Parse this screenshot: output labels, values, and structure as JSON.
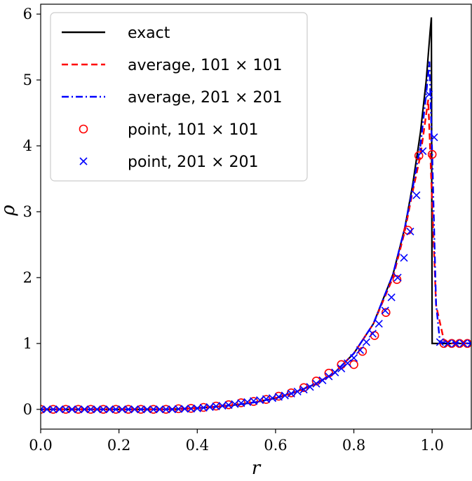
{
  "chart_data": {
    "type": "line",
    "xlabel": "r",
    "ylabel": "ρ",
    "xlim": [
      0.0,
      1.1
    ],
    "ylim": [
      -0.3,
      6.15
    ],
    "xticks": [
      "0.0",
      "0.2",
      "0.4",
      "0.6",
      "0.8",
      "1.0"
    ],
    "yticks": [
      "0",
      "1",
      "2",
      "3",
      "4",
      "5",
      "6"
    ],
    "grid": false,
    "legend_position": "top-left",
    "series": [
      {
        "name": "exact",
        "kind": "line",
        "color": "#000000",
        "x": [
          0.0,
          0.1,
          0.2,
          0.3,
          0.35,
          0.4,
          0.45,
          0.5,
          0.55,
          0.6,
          0.65,
          0.7,
          0.75,
          0.8,
          0.85,
          0.9,
          0.93,
          0.95,
          0.97,
          0.985,
          0.995,
          0.998,
          1.0,
          1.1
        ],
        "y": [
          0.0,
          0.0,
          0.0,
          0.0,
          0.005,
          0.02,
          0.04,
          0.07,
          0.11,
          0.17,
          0.26,
          0.38,
          0.55,
          0.85,
          1.3,
          2.05,
          2.75,
          3.4,
          4.2,
          5.0,
          5.75,
          5.95,
          1.0,
          1.0
        ]
      },
      {
        "name": "average, 101 × 101",
        "kind": "dashed",
        "color": "#ff0000",
        "x": [
          0.0,
          0.1,
          0.2,
          0.3,
          0.35,
          0.4,
          0.45,
          0.5,
          0.55,
          0.6,
          0.65,
          0.7,
          0.75,
          0.8,
          0.85,
          0.9,
          0.93,
          0.95,
          0.97,
          0.99,
          1.01,
          1.03,
          1.05,
          1.1
        ],
        "y": [
          0.0,
          0.0,
          0.0,
          0.0,
          0.005,
          0.02,
          0.04,
          0.07,
          0.11,
          0.17,
          0.26,
          0.38,
          0.55,
          0.85,
          1.3,
          2.0,
          2.7,
          3.3,
          3.85,
          4.7,
          1.58,
          1.05,
          1.0,
          1.0
        ]
      },
      {
        "name": "average, 201 × 201",
        "kind": "dashdot",
        "color": "#0000ff",
        "x": [
          0.0,
          0.1,
          0.2,
          0.3,
          0.35,
          0.4,
          0.45,
          0.5,
          0.55,
          0.6,
          0.65,
          0.7,
          0.75,
          0.8,
          0.85,
          0.9,
          0.93,
          0.95,
          0.97,
          0.985,
          0.993,
          1.0,
          1.01,
          1.02,
          1.1
        ],
        "y": [
          0.0,
          0.0,
          0.0,
          0.0,
          0.005,
          0.02,
          0.04,
          0.07,
          0.11,
          0.17,
          0.26,
          0.38,
          0.55,
          0.85,
          1.3,
          2.05,
          2.75,
          3.35,
          4.0,
          4.8,
          5.28,
          3.9,
          1.6,
          1.02,
          1.0
        ]
      },
      {
        "name": "point, 101 × 101",
        "kind": "circles",
        "color": "#ff0000",
        "x": [
          0.0,
          0.032,
          0.064,
          0.096,
          0.128,
          0.16,
          0.192,
          0.224,
          0.256,
          0.288,
          0.32,
          0.352,
          0.384,
          0.416,
          0.448,
          0.48,
          0.512,
          0.544,
          0.576,
          0.608,
          0.64,
          0.672,
          0.704,
          0.736,
          0.768,
          0.8,
          0.822,
          0.853,
          0.882,
          0.91,
          0.938,
          0.966,
          1.0,
          1.03,
          1.05,
          1.07,
          1.09
        ],
        "y": [
          0.0,
          0.0,
          0.0,
          0.0,
          0.0,
          0.0,
          0.0,
          0.0,
          0.0,
          0.0,
          0.0,
          0.01,
          0.015,
          0.03,
          0.05,
          0.07,
          0.1,
          0.12,
          0.15,
          0.2,
          0.25,
          0.33,
          0.43,
          0.55,
          0.68,
          0.68,
          0.88,
          1.12,
          1.47,
          1.97,
          2.72,
          3.85,
          3.87,
          1.0,
          1.0,
          1.0,
          1.0
        ]
      },
      {
        "name": "point, 201 × 201",
        "kind": "crosses",
        "color": "#0000ff",
        "x": [
          0.0,
          0.016,
          0.032,
          0.048,
          0.064,
          0.08,
          0.096,
          0.112,
          0.128,
          0.144,
          0.16,
          0.176,
          0.192,
          0.208,
          0.224,
          0.24,
          0.256,
          0.272,
          0.288,
          0.304,
          0.32,
          0.336,
          0.352,
          0.368,
          0.384,
          0.4,
          0.416,
          0.432,
          0.448,
          0.464,
          0.48,
          0.496,
          0.512,
          0.528,
          0.544,
          0.56,
          0.576,
          0.592,
          0.608,
          0.624,
          0.64,
          0.656,
          0.672,
          0.688,
          0.704,
          0.72,
          0.736,
          0.752,
          0.768,
          0.784,
          0.8,
          0.816,
          0.832,
          0.848,
          0.864,
          0.88,
          0.896,
          0.912,
          0.928,
          0.944,
          0.96,
          0.976,
          0.992,
          1.005,
          1.02,
          1.04,
          1.06,
          1.08,
          1.1
        ],
        "y": [
          0.0,
          0.0,
          0.0,
          0.0,
          0.0,
          0.0,
          0.0,
          0.0,
          0.0,
          0.0,
          0.0,
          0.0,
          0.0,
          0.0,
          0.0,
          0.0,
          0.0,
          0.0,
          0.0,
          0.0,
          0.0,
          0.0,
          0.005,
          0.008,
          0.01,
          0.015,
          0.025,
          0.035,
          0.045,
          0.055,
          0.065,
          0.08,
          0.095,
          0.11,
          0.125,
          0.14,
          0.155,
          0.17,
          0.19,
          0.21,
          0.24,
          0.27,
          0.3,
          0.34,
          0.39,
          0.44,
          0.5,
          0.56,
          0.62,
          0.7,
          0.78,
          0.9,
          1.02,
          1.15,
          1.3,
          1.5,
          1.7,
          2.0,
          2.3,
          2.7,
          3.25,
          3.92,
          4.78,
          4.13,
          1.02,
          1.0,
          1.0,
          1.0,
          1.0
        ]
      }
    ]
  }
}
